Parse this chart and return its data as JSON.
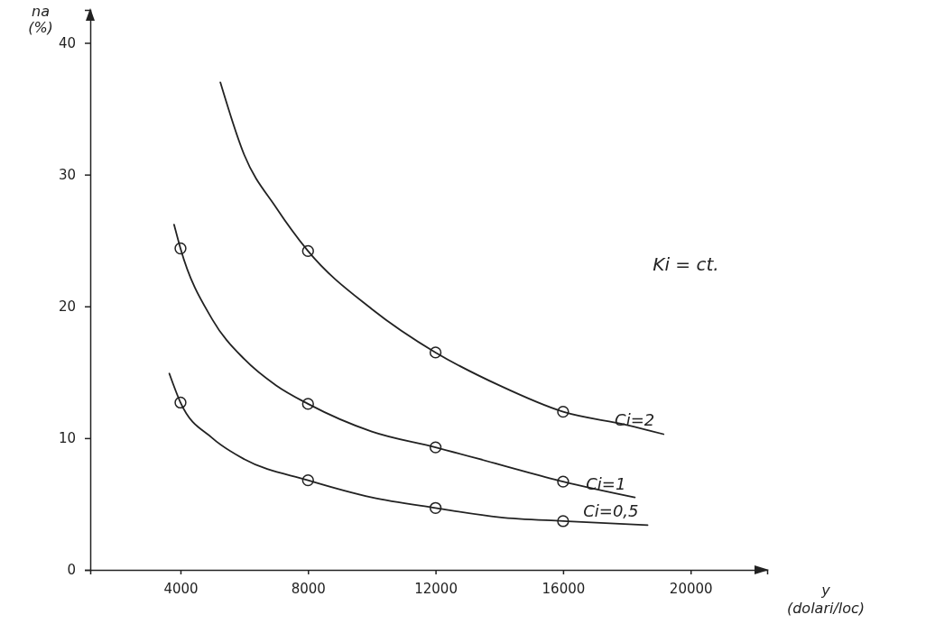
{
  "chart_data": {
    "type": "line",
    "xlabel": "y\n(dolari/loc)",
    "ylabel": "na\n(%)",
    "xlim": [
      1170,
      22400
    ],
    "ylim": [
      0,
      42.5
    ],
    "xticks": [
      4000,
      8000,
      12000,
      16000,
      20000
    ],
    "yticks": [
      0,
      10,
      20,
      30,
      40
    ],
    "grid": false,
    "line_style": "solid",
    "annotations": [
      "Ki = ct."
    ],
    "series": [
      {
        "name": "Ci=2",
        "color": "#222222",
        "marker": "none",
        "x": [
          5250,
          6000,
          7000,
          8000,
          10000,
          12000,
          14000,
          16000,
          18000,
          19150
        ],
        "values": [
          37,
          31.5,
          27.5,
          24.2,
          19.8,
          16.5,
          14,
          12,
          11,
          10.3
        ]
      },
      {
        "name": "Ci=1",
        "color": "#222222",
        "marker": "none",
        "x": [
          3800,
          4000,
          5000,
          6000,
          7000,
          8000,
          10000,
          12000,
          14000,
          16000,
          18250
        ],
        "values": [
          26.2,
          24.4,
          19,
          16,
          14,
          12.6,
          10.5,
          9.3,
          8,
          6.7,
          5.5
        ]
      },
      {
        "name": "Ci=0,5",
        "color": "#222222",
        "marker": "none",
        "x": [
          3650,
          4000,
          5000,
          6000,
          8000,
          10000,
          12000,
          14000,
          16000,
          18650
        ],
        "values": [
          14.9,
          12.7,
          10,
          8.4,
          6.8,
          5.5,
          4.7,
          4,
          3.7,
          3.4
        ]
      },
      {
        "type": "scatter",
        "color": "#222222",
        "marker": "circle",
        "x": [
          8000,
          12000,
          16000
        ],
        "values": [
          24.2,
          16.5,
          12
        ]
      },
      {
        "type": "scatter",
        "color": "#222222",
        "marker": "circle",
        "x": [
          4000,
          8000,
          12000,
          16000
        ],
        "values": [
          24.4,
          12.6,
          9.3,
          6.7
        ]
      },
      {
        "type": "scatter",
        "color": "#222222",
        "marker": "circle",
        "x": [
          4000,
          8000,
          12000,
          16000
        ],
        "values": [
          12.7,
          6.8,
          4.7,
          3.7
        ]
      }
    ]
  }
}
